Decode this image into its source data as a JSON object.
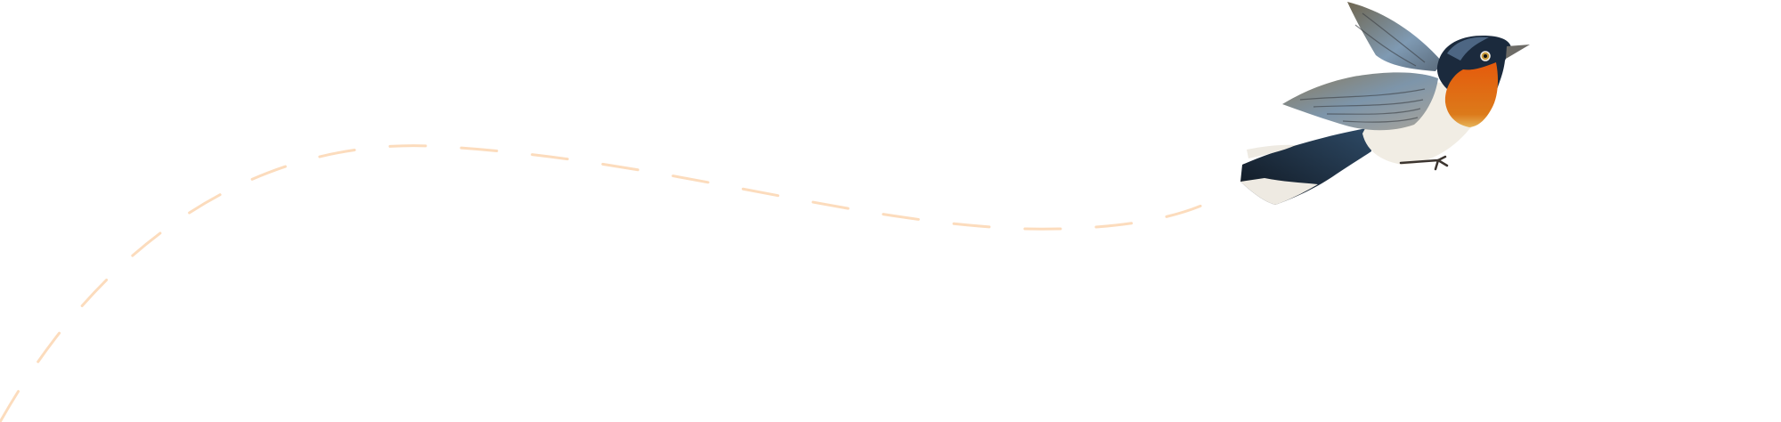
{
  "scene": {
    "background_color": "#ffffff",
    "flight_path": {
      "style": "dashed",
      "color": "#fcdcbd"
    },
    "bird": {
      "icon": "bird-illustration",
      "colors": {
        "head": "#1e2f45",
        "throat": "#e0650f",
        "belly": "#f1ede4",
        "wing": "#7f8a90",
        "tail": "#17222f"
      }
    }
  }
}
